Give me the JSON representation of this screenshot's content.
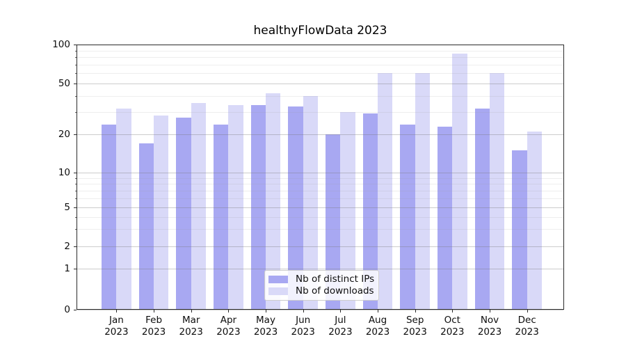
{
  "title": "healthyFlowData 2023",
  "chart_data": {
    "type": "bar",
    "categories": [
      "Jan 2023",
      "Feb 2023",
      "Mar 2023",
      "Apr 2023",
      "May 2023",
      "Jun 2023",
      "Jul 2023",
      "Aug 2023",
      "Sep 2023",
      "Oct 2023",
      "Nov 2023",
      "Dec 2023"
    ],
    "series": [
      {
        "name": "Nb of distinct IPs",
        "color": "#a8a8f2",
        "values": [
          24,
          17,
          27,
          24,
          34,
          33,
          20,
          29,
          24,
          23,
          32,
          15
        ]
      },
      {
        "name": "Nb of downloads",
        "color": "#d9d9f8",
        "values": [
          32,
          28,
          35,
          34,
          42,
          40,
          30,
          60,
          60,
          85,
          60,
          21
        ]
      }
    ],
    "y_axis": {
      "scale": "asinh-log",
      "range": [
        0,
        100
      ],
      "major_ticks": [
        0,
        1,
        2,
        5,
        10,
        20,
        50,
        100
      ],
      "minor_ticks": [
        3,
        4,
        6,
        7,
        8,
        9,
        30,
        40,
        60,
        70,
        80,
        90
      ]
    },
    "x_axis": {
      "tick_line1": [
        "Jan",
        "Feb",
        "Mar",
        "Apr",
        "May",
        "Jun",
        "Jul",
        "Aug",
        "Sep",
        "Oct",
        "Nov",
        "Dec"
      ],
      "tick_line2": "2023"
    },
    "grid": true,
    "legend_position": "lower center"
  }
}
